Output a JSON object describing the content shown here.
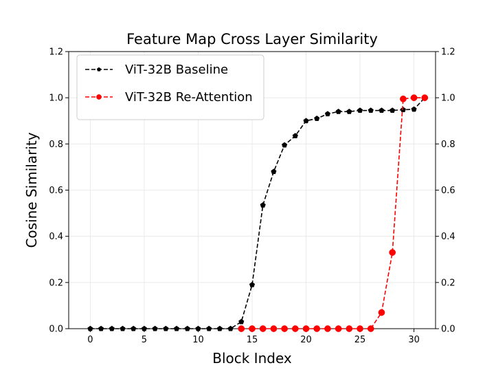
{
  "chart_data": {
    "type": "line",
    "title": "Feature Map Cross Layer Similarity",
    "xlabel": "Block Index",
    "ylabel": "Cosine Similarity",
    "xlim": [
      -2,
      32
    ],
    "ylim": [
      0,
      1.2
    ],
    "xticks": [
      0,
      5,
      10,
      15,
      20,
      25,
      30
    ],
    "yticks": [
      0.0,
      0.2,
      0.4,
      0.6,
      0.8,
      1.0,
      1.2
    ],
    "ytick_labels": [
      "0.0",
      "0.2",
      "0.4",
      "0.6",
      "0.8",
      "1.0",
      "1.2"
    ],
    "right_axis_mirror": true,
    "grid": true,
    "legend_position": "top-left",
    "series": [
      {
        "name": "ViT-32B Baseline",
        "color": "#000000",
        "line_style": "dashed",
        "marker": "pentagon",
        "x": [
          0,
          1,
          2,
          3,
          4,
          5,
          6,
          7,
          8,
          9,
          10,
          11,
          12,
          13,
          14,
          15,
          16,
          17,
          18,
          19,
          20,
          21,
          22,
          23,
          24,
          25,
          26,
          27,
          28,
          29,
          30,
          31
        ],
        "values": [
          0,
          0,
          0,
          0,
          0,
          0,
          0,
          0,
          0,
          0,
          0,
          0,
          0,
          0,
          0.03,
          0.19,
          0.535,
          0.68,
          0.795,
          0.835,
          0.9,
          0.91,
          0.93,
          0.94,
          0.94,
          0.945,
          0.945,
          0.945,
          0.945,
          0.948,
          0.95,
          1.0
        ]
      },
      {
        "name": "ViT-32B Re-Attention",
        "color": "#ff0000",
        "line_style": "dashed",
        "marker": "circle",
        "x": [
          14,
          15,
          16,
          17,
          18,
          19,
          20,
          21,
          22,
          23,
          24,
          25,
          26,
          27,
          28,
          29,
          30,
          31
        ],
        "values": [
          0,
          0,
          0,
          0,
          0,
          0,
          0,
          0,
          0,
          0,
          0,
          0,
          0,
          0.07,
          0.33,
          0.995,
          1.0,
          1.0
        ]
      }
    ]
  }
}
